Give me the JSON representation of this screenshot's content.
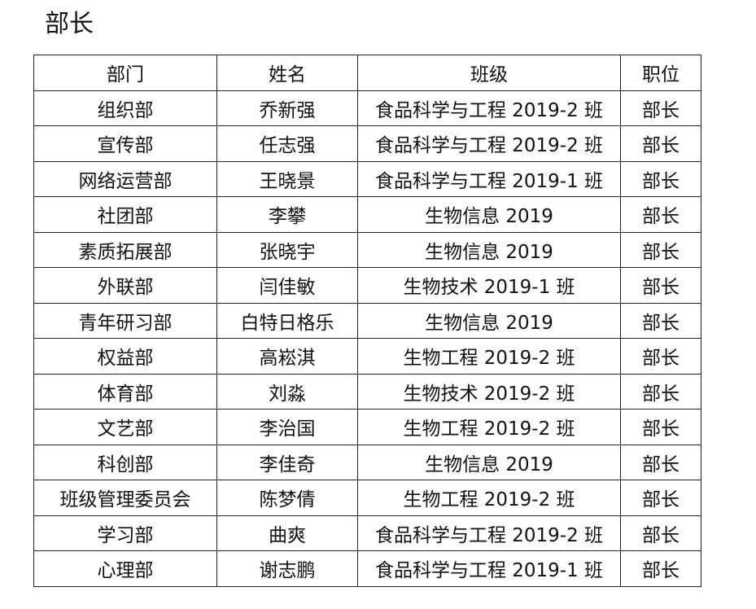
{
  "title": "部长",
  "table": {
    "headers": [
      "部门",
      "姓名",
      "班级",
      "职位"
    ],
    "rows": [
      [
        "组织部",
        "乔新强",
        "食品科学与工程 2019-2 班",
        "部长"
      ],
      [
        "宣传部",
        "任志强",
        "食品科学与工程 2019-2 班",
        "部长"
      ],
      [
        "网络运营部",
        "王晓景",
        "食品科学与工程 2019-1 班",
        "部长"
      ],
      [
        "社团部",
        "李攀",
        "生物信息 2019",
        "部长"
      ],
      [
        "素质拓展部",
        "张晓宇",
        "生物信息 2019",
        "部长"
      ],
      [
        "外联部",
        "闫佳敏",
        "生物技术 2019-1 班",
        "部长"
      ],
      [
        "青年研习部",
        "白特日格乐",
        "生物信息 2019",
        "部长"
      ],
      [
        "权益部",
        "高崧淇",
        "生物工程 2019-2 班",
        "部长"
      ],
      [
        "体育部",
        "刘淼",
        "生物技术 2019-2 班",
        "部长"
      ],
      [
        "文艺部",
        "李治国",
        "生物工程 2019-2 班",
        "部长"
      ],
      [
        "科创部",
        "李佳奇",
        "生物信息 2019",
        "部长"
      ],
      [
        "班级管理委员会",
        "陈梦倩",
        "生物工程 2019-2 班",
        "部长"
      ],
      [
        "学习部",
        "曲爽",
        "食品科学与工程 2019-2 班",
        "部长"
      ],
      [
        "心理部",
        "谢志鹏",
        "食品科学与工程 2019-1 班",
        "部长"
      ]
    ]
  }
}
